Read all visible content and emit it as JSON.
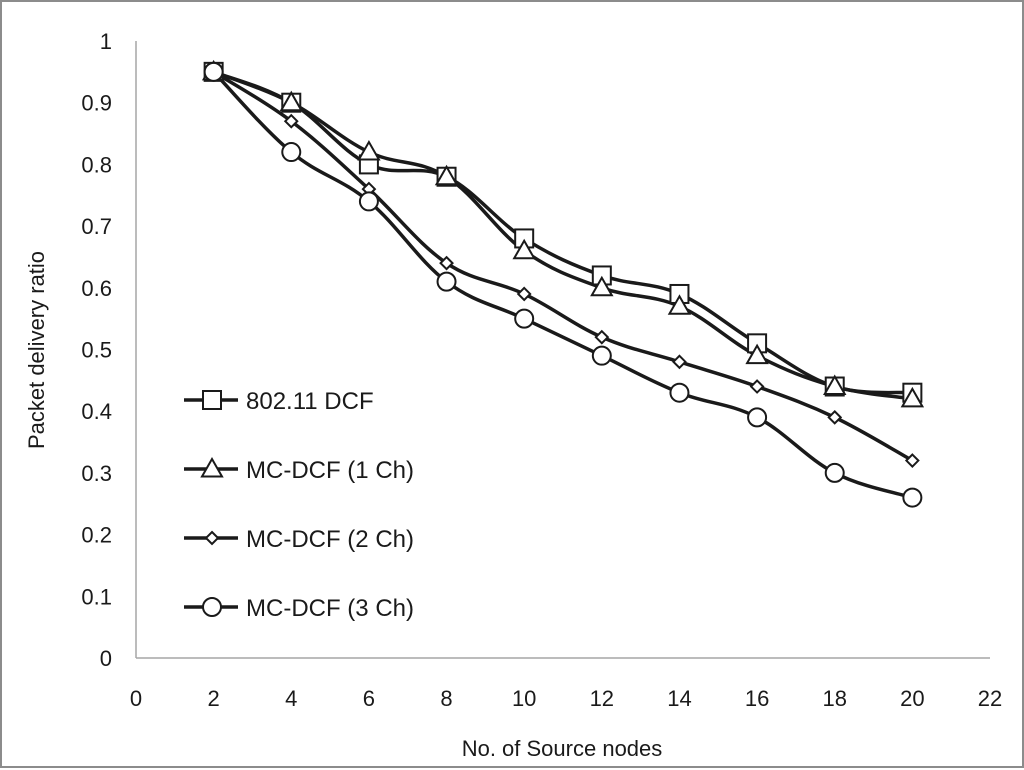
{
  "chart_data": {
    "type": "line",
    "title": "",
    "xlabel": "No. of Source nodes",
    "ylabel": "Packet delivery ratio",
    "xlim": [
      0,
      22
    ],
    "ylim": [
      0,
      1
    ],
    "xticks": [
      0,
      2,
      4,
      6,
      8,
      10,
      12,
      14,
      16,
      18,
      20,
      22
    ],
    "yticks": [
      0,
      0.1,
      0.2,
      0.3,
      0.4,
      0.5,
      0.6,
      0.7,
      0.8,
      0.9,
      1
    ],
    "ytick_labels": [
      "0",
      "0.1",
      "0.2",
      "0.3",
      "0.4",
      "0.5",
      "0.6",
      "0.7",
      "0.8",
      "0.9",
      "1"
    ],
    "grid": false,
    "legend_position": "left",
    "x": [
      2,
      4,
      6,
      8,
      10,
      12,
      14,
      16,
      18,
      20
    ],
    "series": [
      {
        "name": "802.11 DCF",
        "marker": "square",
        "values": [
          0.95,
          0.9,
          0.8,
          0.78,
          0.68,
          0.62,
          0.59,
          0.51,
          0.44,
          0.43
        ]
      },
      {
        "name": "MC-DCF (1 Ch)",
        "marker": "triangle",
        "values": [
          0.95,
          0.9,
          0.82,
          0.78,
          0.66,
          0.6,
          0.57,
          0.49,
          0.44,
          0.42
        ]
      },
      {
        "name": "MC-DCF (2 Ch)",
        "marker": "diamond",
        "values": [
          0.95,
          0.87,
          0.76,
          0.64,
          0.59,
          0.52,
          0.48,
          0.44,
          0.39,
          0.32
        ]
      },
      {
        "name": "MC-DCF (3 Ch)",
        "marker": "circle",
        "values": [
          0.95,
          0.82,
          0.74,
          0.61,
          0.55,
          0.49,
          0.43,
          0.39,
          0.3,
          0.26
        ]
      }
    ]
  }
}
